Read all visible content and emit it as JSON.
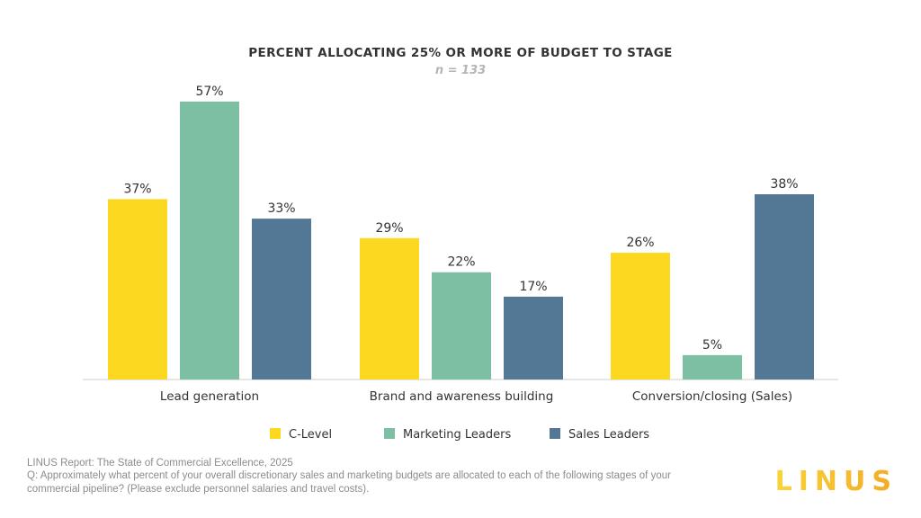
{
  "chart_data": {
    "type": "bar",
    "title": "PERCENT ALLOCATING 25% OR MORE OF BUDGET TO STAGE",
    "subtitle": "n = 133",
    "categories": [
      "Lead generation",
      "Brand and awareness building",
      "Conversion/closing (Sales)"
    ],
    "series": [
      {
        "name": "C-Level",
        "color": "#fcd821",
        "values": [
          37,
          29,
          26
        ],
        "labels": [
          "37%",
          "29%",
          "26%"
        ]
      },
      {
        "name": "Marketing Leaders",
        "color": "#7cbfa2",
        "values": [
          57,
          22,
          5
        ],
        "labels": [
          "57%",
          "22%",
          "5%"
        ]
      },
      {
        "name": "Sales Leaders",
        "color": "#537896",
        "values": [
          33,
          17,
          38
        ],
        "labels": [
          "33%",
          "17%",
          "38%"
        ]
      }
    ],
    "ylim": [
      0,
      57
    ],
    "legend_position": "bottom"
  },
  "footnote": {
    "source": "LINUS Report: The State of Commercial Excellence, 2025",
    "question_line1": "Q:  Approximately what percent of your overall discretionary sales and marketing budgets are allocated to each of the following stages of your",
    "question_line2": "commercial pipeline?  (Please exclude personnel salaries and travel costs)."
  },
  "brand": {
    "logo_text": "LINUS"
  }
}
